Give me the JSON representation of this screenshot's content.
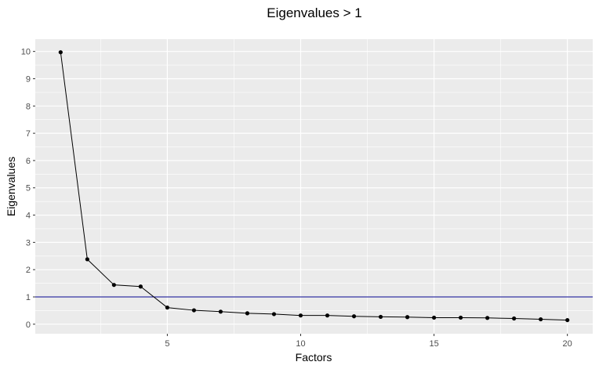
{
  "chart_data": {
    "type": "line",
    "title": "Eigenvalues > 1",
    "xlabel": "Factors",
    "ylabel": "Eigenvalues",
    "xlim": [
      0.05,
      20.95
    ],
    "ylim": [
      -0.35,
      10.45
    ],
    "x_ticks": [
      5,
      10,
      15,
      20
    ],
    "y_ticks": [
      0,
      1,
      2,
      3,
      4,
      5,
      6,
      7,
      8,
      9,
      10
    ],
    "grid": true,
    "background": "#ebebeb",
    "series": [
      {
        "x": [
          1,
          2,
          3,
          4,
          5,
          6,
          7,
          8,
          9,
          10,
          11,
          12,
          13,
          14,
          15,
          16,
          17,
          18,
          19,
          20
        ],
        "y": [
          9.97,
          2.38,
          1.44,
          1.38,
          0.61,
          0.51,
          0.46,
          0.4,
          0.37,
          0.32,
          0.32,
          0.29,
          0.27,
          0.26,
          0.24,
          0.24,
          0.23,
          0.21,
          0.18,
          0.15
        ],
        "color": "#000000"
      }
    ],
    "reference_line": {
      "y": 1,
      "color": "#00008b"
    }
  }
}
